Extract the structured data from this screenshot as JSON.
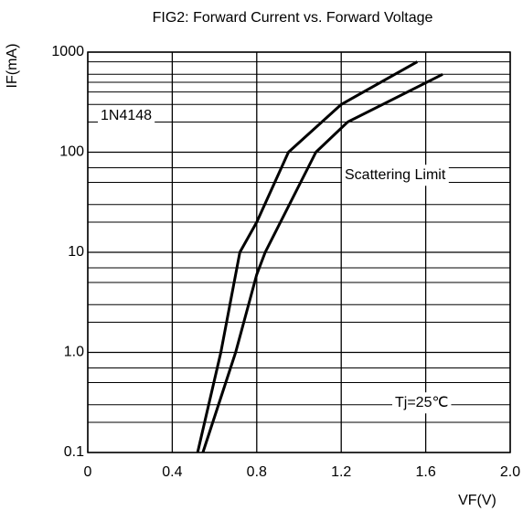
{
  "chart_data": {
    "type": "line",
    "title": "FIG2: Forward Current vs. Forward Voltage",
    "x_label": "VF(V)",
    "y_label": "IF(mA)",
    "log_y": true,
    "grid": true,
    "xlim": [
      0,
      2.0
    ],
    "xticks": [
      0,
      0.4,
      0.8,
      1.2,
      1.6,
      {
        "value": 2.0,
        "label": "2.0"
      }
    ],
    "ylim": [
      0.1,
      1000
    ],
    "yticks": [
      0.1,
      {
        "value": 1,
        "label": "1.0"
      },
      10,
      100,
      1000
    ],
    "yminorticks": [
      0.2,
      0.3,
      0.5,
      0.7,
      2,
      3,
      5,
      7,
      20,
      30,
      50,
      70,
      200,
      300,
      400,
      500,
      600,
      800
    ],
    "annotations": [
      "1N4148",
      "Scattering Limit",
      "Tj=25℃"
    ],
    "series": [
      {
        "color": "#000000",
        "x": [
          0.52,
          0.63,
          0.72,
          0.8,
          0.95,
          1.2,
          1.56
        ],
        "values": [
          0.1,
          1,
          10,
          20,
          100,
          300,
          800
        ]
      },
      {
        "color": "#000000",
        "x": [
          0.545,
          0.7,
          0.8,
          0.84,
          1.08,
          1.23,
          1.68
        ],
        "values": [
          0.1,
          1,
          6,
          10,
          100,
          200,
          600
        ]
      }
    ]
  }
}
